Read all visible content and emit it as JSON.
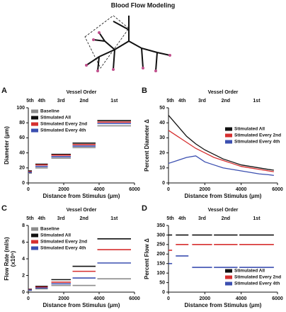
{
  "title": "Blood Flow Modeling",
  "chart_data": [
    {
      "type": "step",
      "panel": "A",
      "title": "Vessel Order",
      "x_label": "Distance from Stimulus (μm)",
      "y_label": [
        "Diameter (μm)"
      ],
      "categories": [
        "5th",
        "4th",
        "3rd",
        "2nd",
        "1st"
      ],
      "segments": [
        [
          0,
          200
        ],
        [
          400,
          1100
        ],
        [
          1300,
          2400
        ],
        [
          2500,
          3800
        ],
        [
          3900,
          5800
        ]
      ],
      "xlim": [
        0,
        6000
      ],
      "xticks": [
        0,
        2000,
        4000,
        6000
      ],
      "ylim": [
        0,
        100
      ],
      "yticks": [
        0,
        20,
        40,
        60,
        80,
        100
      ],
      "legend": "top-left",
      "series": [
        {
          "name": "Baseline",
          "color": "#8c8c8c",
          "values": [
            13,
            20,
            33,
            47,
            76
          ]
        },
        {
          "name": "Stimulated All",
          "color": "#111111",
          "values": [
            16,
            25,
            38,
            53,
            83
          ]
        },
        {
          "name": "Stimulated Every 2nd",
          "color": "#d62f2f",
          "values": [
            15,
            24,
            37,
            51,
            81
          ]
        },
        {
          "name": "Stimulated Every 4th",
          "color": "#3b4fb0",
          "values": [
            14,
            22,
            35,
            49,
            79
          ]
        }
      ]
    },
    {
      "type": "line",
      "panel": "B",
      "title": "Vessel Order",
      "x_label": "Distance from Stimulus (μm)",
      "y_label": [
        "Percent Diameter Δ"
      ],
      "categories": [
        "5th",
        "4th",
        "3rd",
        "2nd",
        "1st"
      ],
      "segments": [
        [
          0,
          200
        ],
        [
          400,
          1100
        ],
        [
          1300,
          2400
        ],
        [
          2500,
          3800
        ],
        [
          3900,
          5800
        ]
      ],
      "xlim": [
        0,
        6000
      ],
      "xticks": [
        0,
        2000,
        4000,
        6000
      ],
      "ylim": [
        0,
        50
      ],
      "yticks": [
        0,
        10,
        20,
        30,
        40,
        50
      ],
      "legend": "center-right",
      "x": [
        0,
        500,
        1000,
        1500,
        2000,
        2500,
        3000,
        3500,
        4000,
        4500,
        5000,
        5500,
        5800
      ],
      "series": [
        {
          "name": "Stimulated All",
          "color": "#111111",
          "values": [
            45,
            38,
            31,
            26,
            22,
            19,
            16,
            14,
            12,
            11,
            10,
            9,
            8.5
          ]
        },
        {
          "name": "Stimulated Every 2nd",
          "color": "#d62f2f",
          "values": [
            35,
            31,
            27,
            23,
            20,
            17,
            15,
            13,
            11,
            10,
            9,
            8,
            7.5
          ]
        },
        {
          "name": "Stimulated Every 4th",
          "color": "#3b4fb0",
          "values": [
            13,
            15,
            17,
            18,
            14,
            12,
            10,
            9,
            8,
            7,
            6,
            5.5,
            5
          ]
        }
      ]
    },
    {
      "type": "step",
      "panel": "C",
      "title": "Vessel Order",
      "x_label": "Distance from Stimulus (μm)",
      "y_label": [
        "Flow Rate (ml/s)",
        "(x10⁵)"
      ],
      "categories": [
        "5th",
        "4th",
        "3rd",
        "2nd",
        "1st"
      ],
      "segments": [
        [
          0,
          200
        ],
        [
          400,
          1100
        ],
        [
          1300,
          2400
        ],
        [
          2500,
          3800
        ],
        [
          3900,
          5800
        ]
      ],
      "xlim": [
        0,
        6000
      ],
      "xticks": [
        0,
        2000,
        4000,
        6000
      ],
      "ylim": [
        0,
        8
      ],
      "yticks": [
        0,
        2,
        4,
        6,
        8
      ],
      "legend": "top-left",
      "series": [
        {
          "name": "Baseline",
          "color": "#8c8c8c",
          "values": [
            0.2,
            0.4,
            0.8,
            0.8,
            1.6
          ]
        },
        {
          "name": "Stimulated All",
          "color": "#111111",
          "values": [
            0.35,
            0.7,
            1.5,
            3.1,
            6.4
          ]
        },
        {
          "name": "Stimulated Every 2nd",
          "color": "#d62f2f",
          "values": [
            0.3,
            0.6,
            1.2,
            2.5,
            5.1
          ]
        },
        {
          "name": "Stimulated Every 4th",
          "color": "#3b4fb0",
          "values": [
            0.25,
            0.5,
            1.0,
            1.7,
            3.5
          ]
        }
      ]
    },
    {
      "type": "step",
      "panel": "D",
      "title": "Vessel Order",
      "x_label": "Distance from Stimulus (μm)",
      "y_label": [
        "Percent Flow Δ"
      ],
      "categories": [
        "5th",
        "4th",
        "3rd",
        "2nd",
        "1st"
      ],
      "segments": [
        [
          0,
          200
        ],
        [
          400,
          1100
        ],
        [
          1300,
          2400
        ],
        [
          2500,
          3800
        ],
        [
          3900,
          5800
        ]
      ],
      "xlim": [
        0,
        6000
      ],
      "xticks": [
        0,
        2000,
        4000,
        6000
      ],
      "ylim": [
        0,
        350
      ],
      "yticks": [
        0,
        50,
        100,
        150,
        200,
        250,
        300,
        350
      ],
      "legend": "bottom-right",
      "series": [
        {
          "name": "Stimulated All",
          "color": "#111111",
          "values": [
            300,
            300,
            300,
            300,
            300
          ]
        },
        {
          "name": "Stimulated Every 2nd",
          "color": "#d62f2f",
          "values": [
            220,
            250,
            250,
            250,
            250
          ]
        },
        {
          "name": "Stimulated Every 4th",
          "color": "#3b4fb0",
          "values": [
            150,
            190,
            130,
            130,
            130
          ]
        }
      ]
    }
  ]
}
